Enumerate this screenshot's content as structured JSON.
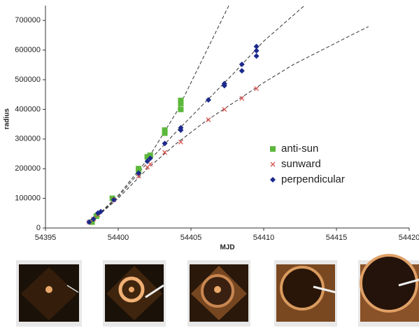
{
  "chart_data": {
    "type": "scatter",
    "x_label": "MJD",
    "y_label": "radius",
    "xlim": [
      54395,
      54420
    ],
    "xticks": [
      54395,
      54400,
      54405,
      54410,
      54415,
      54420
    ],
    "ylim": [
      0,
      750000
    ],
    "yticks": [
      0,
      100000,
      200000,
      300000,
      400000,
      500000,
      600000,
      700000
    ],
    "series": [
      {
        "name": "anti-sun",
        "color": "#5cb83b",
        "marker": "square",
        "x": [
          54398.2,
          54398.5,
          54399.6,
          54401.4,
          54401.4,
          54402.0,
          54402.2,
          54403.2,
          54403.2,
          54404.3,
          54404.3,
          54404.3
        ],
        "values": [
          20000,
          40000,
          100000,
          190000,
          200000,
          240000,
          245000,
          320000,
          330000,
          400000,
          420000,
          430000
        ]
      },
      {
        "name": "sunward",
        "color": "#d9534f",
        "marker": "x",
        "x": [
          54398.0,
          54398.3,
          54398.6,
          54399.7,
          54401.4,
          54402.0,
          54402.2,
          54403.2,
          54404.3,
          54406.2,
          54407.3,
          54408.5,
          54409.5
        ],
        "values": [
          20000,
          30000,
          45000,
          95000,
          175000,
          205000,
          215000,
          255000,
          290000,
          365000,
          400000,
          437000,
          470000
        ]
      },
      {
        "name": "perpendicular",
        "color": "#1c2a8c",
        "marker": "diamond",
        "x": [
          54398.0,
          54398.3,
          54398.6,
          54398.8,
          54399.7,
          54401.4,
          54402.0,
          54402.2,
          54403.2,
          54404.3,
          54404.3,
          54406.2,
          54407.3,
          54407.3,
          54408.5,
          54408.5,
          54409.5,
          54409.5,
          54409.5
        ],
        "values": [
          20000,
          30000,
          50000,
          55000,
          95000,
          185000,
          225000,
          235000,
          285000,
          330000,
          338000,
          432000,
          480000,
          487000,
          530000,
          552000,
          580000,
          598000,
          612000
        ]
      }
    ],
    "fit_lines": [
      {
        "x": [
          54398,
          54400,
          54402,
          54404,
          54406,
          54407.6
        ],
        "values": [
          15000,
          110000,
          230000,
          390000,
          590000,
          750000
        ]
      },
      {
        "x": [
          54398,
          54400,
          54402,
          54404,
          54406,
          54408,
          54410,
          54412.8
        ],
        "values": [
          15000,
          105000,
          220000,
          325000,
          425000,
          525000,
          630000,
          750000
        ]
      },
      {
        "x": [
          54398,
          54400,
          54402,
          54404,
          54406,
          54408,
          54410,
          54412,
          54414,
          54416,
          54417.2
        ],
        "values": [
          15000,
          100000,
          200000,
          285000,
          360000,
          425000,
          490000,
          550000,
          600000,
          650000,
          679000
        ]
      }
    ],
    "legend": "inside-right"
  }
}
